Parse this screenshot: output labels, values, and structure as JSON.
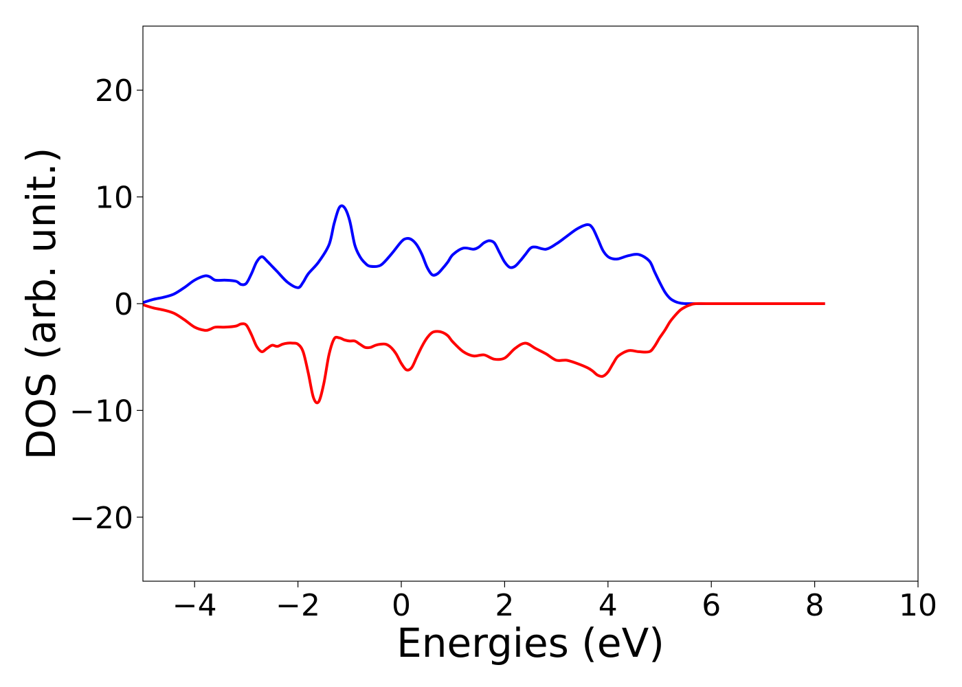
{
  "chart_data": {
    "type": "line",
    "title": "",
    "xlabel": "Energies (eV)",
    "ylabel": "DOS (arb. unit.)",
    "xlim": [
      -5,
      10
    ],
    "ylim": [
      -26,
      26
    ],
    "xticks": [
      -4,
      -2,
      0,
      2,
      4,
      6,
      8,
      10
    ],
    "xtick_labels": [
      "−4",
      "−2",
      "0",
      "2",
      "4",
      "6",
      "8",
      "10"
    ],
    "yticks": [
      -20,
      -10,
      0,
      10,
      20
    ],
    "ytick_labels": [
      "−20",
      "−10",
      "0",
      "10",
      "20"
    ],
    "grid": false,
    "legend": "none",
    "series": [
      {
        "color": "#0000ff",
        "x": [
          -5.0,
          -4.8,
          -4.6,
          -4.4,
          -4.2,
          -4.0,
          -3.8,
          -3.7,
          -3.6,
          -3.4,
          -3.2,
          -3.1,
          -3.0,
          -2.9,
          -2.8,
          -2.7,
          -2.6,
          -2.5,
          -2.4,
          -2.2,
          -2.0,
          -1.9,
          -1.8,
          -1.6,
          -1.4,
          -1.3,
          -1.2,
          -1.1,
          -1.0,
          -0.9,
          -0.8,
          -0.7,
          -0.6,
          -0.4,
          -0.2,
          0.0,
          0.1,
          0.2,
          0.3,
          0.4,
          0.5,
          0.6,
          0.7,
          0.8,
          0.9,
          1.0,
          1.2,
          1.4,
          1.5,
          1.6,
          1.7,
          1.8,
          1.9,
          2.0,
          2.1,
          2.2,
          2.3,
          2.4,
          2.5,
          2.6,
          2.8,
          3.0,
          3.2,
          3.4,
          3.6,
          3.7,
          3.8,
          3.9,
          4.0,
          4.1,
          4.2,
          4.4,
          4.6,
          4.8,
          4.9,
          5.0,
          5.1,
          5.2,
          5.3,
          5.4,
          5.5,
          5.6,
          5.7,
          6.0,
          7.0,
          8.2
        ],
        "y": [
          0.1,
          0.4,
          0.6,
          0.9,
          1.5,
          2.2,
          2.6,
          2.5,
          2.2,
          2.2,
          2.1,
          1.8,
          1.9,
          2.8,
          3.9,
          4.4,
          4.0,
          3.5,
          3.0,
          2.0,
          1.5,
          2.0,
          2.8,
          3.9,
          5.5,
          7.5,
          9.0,
          9.0,
          7.8,
          5.5,
          4.4,
          3.8,
          3.5,
          3.6,
          4.6,
          5.8,
          6.1,
          6.0,
          5.5,
          4.6,
          3.4,
          2.7,
          2.8,
          3.3,
          3.9,
          4.6,
          5.2,
          5.1,
          5.3,
          5.7,
          5.9,
          5.7,
          4.8,
          3.9,
          3.4,
          3.5,
          4.0,
          4.6,
          5.2,
          5.3,
          5.1,
          5.6,
          6.3,
          7.0,
          7.4,
          7.1,
          6.1,
          5.0,
          4.4,
          4.2,
          4.2,
          4.5,
          4.6,
          4.0,
          3.0,
          2.0,
          1.1,
          0.5,
          0.2,
          0.05,
          0.0,
          0.0,
          0.0,
          0.0,
          0.0,
          0.0
        ]
      },
      {
        "color": "#ff0000",
        "x": [
          -5.0,
          -4.8,
          -4.6,
          -4.4,
          -4.2,
          -4.0,
          -3.8,
          -3.7,
          -3.6,
          -3.4,
          -3.2,
          -3.1,
          -3.0,
          -2.9,
          -2.8,
          -2.7,
          -2.6,
          -2.5,
          -2.4,
          -2.3,
          -2.2,
          -2.1,
          -2.0,
          -1.9,
          -1.8,
          -1.7,
          -1.6,
          -1.5,
          -1.4,
          -1.3,
          -1.2,
          -1.1,
          -1.0,
          -0.9,
          -0.8,
          -0.7,
          -0.6,
          -0.5,
          -0.4,
          -0.3,
          -0.2,
          -0.1,
          0.0,
          0.1,
          0.2,
          0.3,
          0.4,
          0.5,
          0.6,
          0.7,
          0.8,
          0.9,
          1.0,
          1.2,
          1.4,
          1.6,
          1.8,
          2.0,
          2.2,
          2.4,
          2.6,
          2.8,
          3.0,
          3.2,
          3.4,
          3.6,
          3.7,
          3.8,
          3.9,
          4.0,
          4.1,
          4.2,
          4.4,
          4.6,
          4.8,
          4.9,
          5.0,
          5.1,
          5.2,
          5.3,
          5.4,
          5.5,
          5.6,
          5.7,
          6.0,
          7.0,
          8.2
        ],
        "y": [
          -0.1,
          -0.4,
          -0.6,
          -0.9,
          -1.5,
          -2.2,
          -2.5,
          -2.4,
          -2.2,
          -2.2,
          -2.1,
          -1.9,
          -2.0,
          -2.9,
          -4.0,
          -4.5,
          -4.2,
          -3.9,
          -4.0,
          -3.8,
          -3.7,
          -3.7,
          -3.8,
          -4.5,
          -6.5,
          -8.8,
          -9.2,
          -7.5,
          -4.8,
          -3.3,
          -3.2,
          -3.4,
          -3.5,
          -3.5,
          -3.8,
          -4.1,
          -4.1,
          -3.9,
          -3.8,
          -3.8,
          -4.1,
          -4.7,
          -5.6,
          -6.2,
          -6.0,
          -5.0,
          -4.0,
          -3.2,
          -2.7,
          -2.6,
          -2.7,
          -3.0,
          -3.6,
          -4.5,
          -4.9,
          -4.8,
          -5.2,
          -5.1,
          -4.2,
          -3.7,
          -4.2,
          -4.7,
          -5.3,
          -5.3,
          -5.6,
          -6.0,
          -6.3,
          -6.7,
          -6.8,
          -6.4,
          -5.6,
          -4.9,
          -4.4,
          -4.5,
          -4.5,
          -4.0,
          -3.2,
          -2.5,
          -1.7,
          -1.1,
          -0.6,
          -0.3,
          -0.1,
          0.0,
          0.0,
          0.0,
          0.0
        ]
      }
    ]
  }
}
